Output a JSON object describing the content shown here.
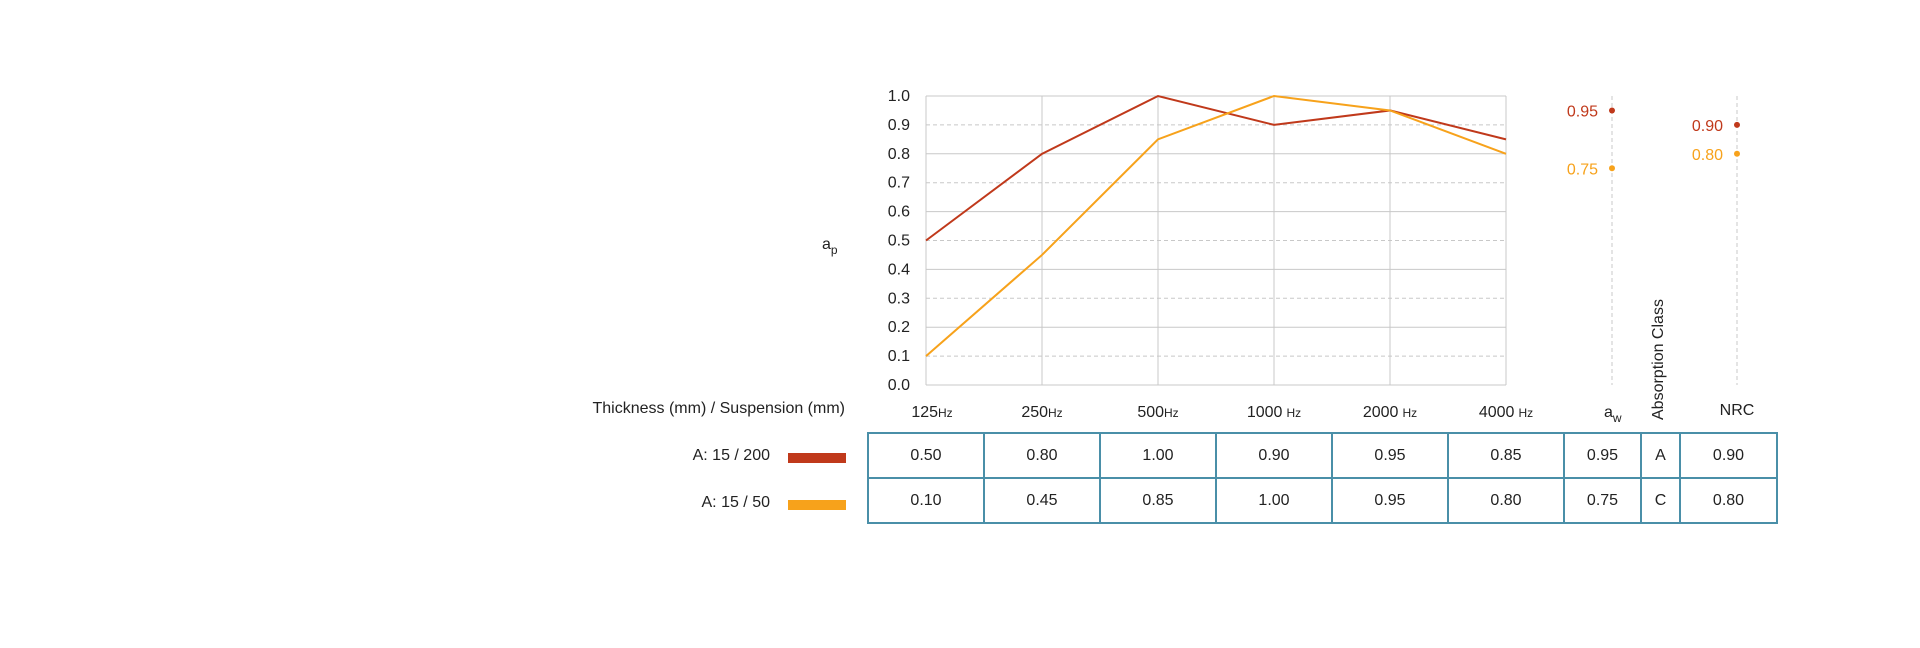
{
  "chart_data": {
    "type": "line",
    "ylabel_main": "a",
    "ylabel_sub": "p",
    "categories": [
      "125",
      "250",
      "500",
      "1000",
      "2000",
      "4000"
    ],
    "category_units": [
      "Hz",
      "Hz",
      "Hz",
      "Hz",
      "Hz",
      "Hz"
    ],
    "ylim": [
      0.0,
      1.0
    ],
    "yticks": [
      "0.0",
      "0.1",
      "0.2",
      "0.3",
      "0.4",
      "0.5",
      "0.6",
      "0.7",
      "0.8",
      "0.9",
      "1.0"
    ],
    "series": [
      {
        "name": "A: 15 / 200",
        "color": "#c0391b",
        "values": [
          0.5,
          0.8,
          1.0,
          0.9,
          0.95,
          0.85
        ],
        "aw": 0.95,
        "aw_label": "0.95",
        "nrc": 0.9,
        "nrc_label": "0.90",
        "cls": "A"
      },
      {
        "name": "A: 15 / 50",
        "color": "#f7a21b",
        "values": [
          0.1,
          0.45,
          0.85,
          1.0,
          0.95,
          0.8
        ],
        "aw": 0.75,
        "aw_label": "0.75",
        "nrc": 0.8,
        "nrc_label": "0.80",
        "cls": "C"
      }
    ],
    "aw_label_main": "a",
    "aw_label_sub": "w",
    "absorption_class_label": "Absorption Class",
    "nrc_label": "NRC",
    "header_label": "Thickness (mm) / Suspension (mm)",
    "table_rows": [
      [
        "0.50",
        "0.80",
        "1.00",
        "0.90",
        "0.95",
        "0.85",
        "0.95",
        "A",
        "0.90"
      ],
      [
        "0.10",
        "0.45",
        "0.85",
        "1.00",
        "0.95",
        "0.80",
        "0.75",
        "C",
        "0.80"
      ]
    ]
  }
}
